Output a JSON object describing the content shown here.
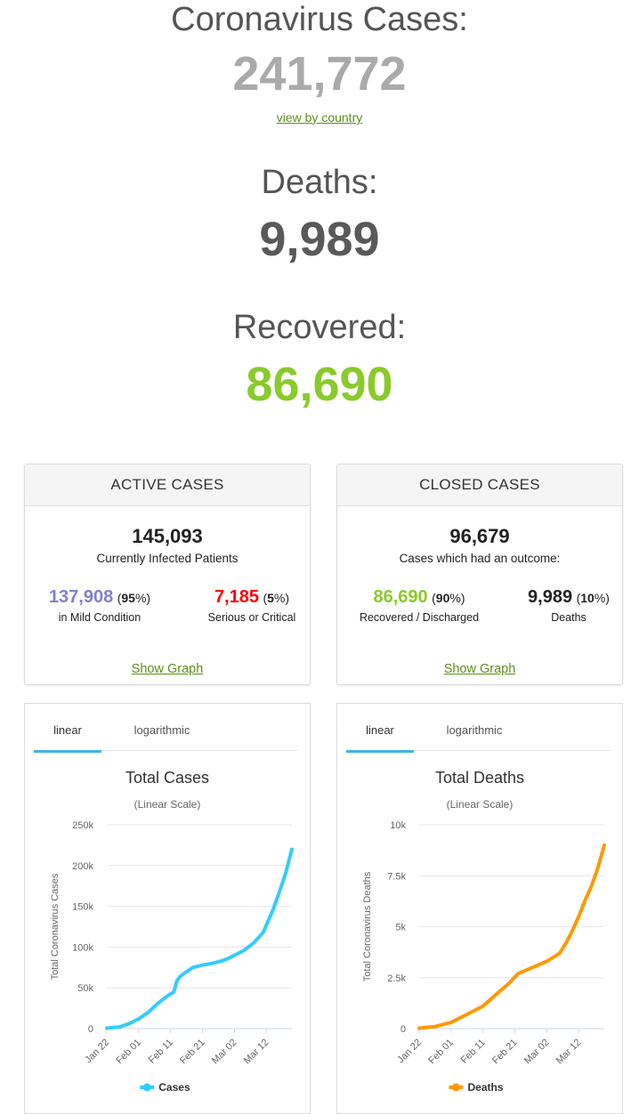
{
  "summary": {
    "cases_label": "Coronavirus Cases:",
    "cases_value": "241,772",
    "view_by_country": "view by country",
    "deaths_label": "Deaths:",
    "deaths_value": "9,989",
    "recovered_label": "Recovered:",
    "recovered_value": "86,690"
  },
  "colors": {
    "cases_number": "#aaaaaa",
    "deaths_number": "#595959",
    "recovered_number": "#8aca2b",
    "mild": "#8080cf",
    "serious": "#ff0000",
    "recovered_small": "#8aca2b",
    "link": "#5f8e1a",
    "cases_line": "#33ccff",
    "deaths_line": "#ff9900",
    "tab_underline": "#3fb5e5"
  },
  "active_cases": {
    "header": "ACTIVE CASES",
    "total": "145,093",
    "caption": "Currently Infected Patients",
    "mild_value": "137,908",
    "mild_pct": "95",
    "mild_label": "in Mild Condition",
    "serious_value": "7,185",
    "serious_pct": "5",
    "serious_label": "Serious or Critical",
    "show_graph": "Show Graph"
  },
  "closed_cases": {
    "header": "CLOSED CASES",
    "total": "96,679",
    "caption": "Cases which had an outcome:",
    "recovered_value": "86,690",
    "recovered_pct": "90",
    "recovered_label": "Recovered / Discharged",
    "deaths_value": "9,989",
    "deaths_pct": "10",
    "deaths_label": "Deaths",
    "show_graph": "Show Graph"
  },
  "tabs": {
    "linear": "linear",
    "logarithmic": "logarithmic"
  },
  "chart_data": [
    {
      "type": "line",
      "title": "Total Cases",
      "subtitle": "(Linear Scale)",
      "ylabel": "Total Coronavirus Cases",
      "ylim": [
        0,
        250000
      ],
      "yticks": [
        0,
        50000,
        100000,
        150000,
        200000,
        250000
      ],
      "ytick_labels": [
        "0",
        "50k",
        "100k",
        "150k",
        "200k",
        "250k"
      ],
      "xticks": [
        0,
        10,
        20,
        30,
        40,
        50
      ],
      "xtick_labels": [
        "Jan 22",
        "Feb 01",
        "Feb 11",
        "Feb 21",
        "Mar 02",
        "Mar 12"
      ],
      "xlim": [
        0,
        58
      ],
      "legend": "Cases",
      "legend_position": "bottom",
      "series": [
        {
          "name": "Cases",
          "x": [
            0,
            4,
            7,
            10,
            13,
            16,
            19,
            21,
            22,
            23,
            24,
            27,
            30,
            33,
            36,
            38,
            40,
            43,
            46,
            49,
            52,
            54,
            56,
            58
          ],
          "values": [
            600,
            2000,
            6000,
            12000,
            20000,
            31000,
            40000,
            45000,
            59000,
            64000,
            67000,
            75000,
            78000,
            80000,
            83000,
            86000,
            90000,
            96000,
            105000,
            118000,
            145000,
            167000,
            190000,
            220000
          ]
        }
      ]
    },
    {
      "type": "line",
      "title": "Total Deaths",
      "subtitle": "(Linear Scale)",
      "ylabel": "Total Coronavirus Deaths",
      "ylim": [
        0,
        10000
      ],
      "yticks": [
        0,
        2500,
        5000,
        7500,
        10000
      ],
      "ytick_labels": [
        "0",
        "2.5k",
        "5k",
        "7.5k",
        "10k"
      ],
      "xticks": [
        0,
        10,
        20,
        30,
        40,
        50
      ],
      "xtick_labels": [
        "Jan 22",
        "Feb 01",
        "Feb 11",
        "Feb 21",
        "Mar 02",
        "Mar 12"
      ],
      "xlim": [
        0,
        58
      ],
      "legend": "Deaths",
      "legend_position": "bottom",
      "series": [
        {
          "name": "Deaths",
          "x": [
            0,
            5,
            10,
            15,
            20,
            25,
            28,
            31,
            34,
            37,
            40,
            42,
            44,
            46,
            48,
            50,
            52,
            54,
            56,
            58
          ],
          "values": [
            20,
            100,
            300,
            700,
            1100,
            1800,
            2200,
            2700,
            2900,
            3100,
            3300,
            3500,
            3700,
            4200,
            4800,
            5500,
            6300,
            7000,
            7900,
            9000
          ]
        }
      ]
    }
  ]
}
